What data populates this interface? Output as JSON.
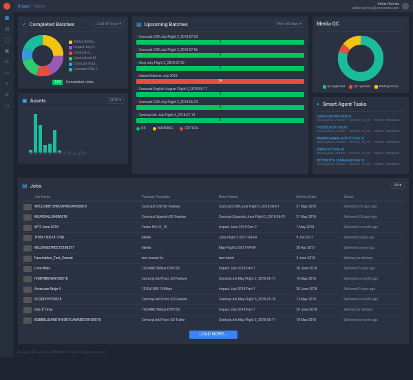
{
  "header": {
    "product": "Impact",
    "section": "Home",
    "user_name": "Adrian Gomez",
    "user_email": "adrian.gomez@ownzones.com"
  },
  "completed": {
    "title": "Completed Batches",
    "picker": "Last 60 days",
    "slices": [
      {
        "label": "Adrise Rollou...",
        "value": 25,
        "color": "#f1c40f"
      },
      {
        "label": "Impact July 2...",
        "value": 18,
        "color": "#9b59b6"
      },
      {
        "label": "CenturyLin...",
        "value": 12,
        "color": "#e74c3c"
      },
      {
        "label": "CenturyLink M...",
        "value": 16,
        "color": "#2ecc71"
      },
      {
        "label": "Comcast Engl...",
        "value": 10,
        "color": "#3498db"
      },
      {
        "label": "Comcast CIM J...",
        "value": 19,
        "color": "#1abc9c"
      }
    ],
    "inner_hole": 0.5,
    "count": "153",
    "count_label": "Completed Jobs"
  },
  "assets": {
    "title": "Assets",
    "picker": "2018",
    "bar_color": "#1abc9c",
    "months": [
      "JAN",
      "FEB",
      "MAR",
      "APR",
      "MAY",
      "JUN",
      "JUL",
      "AUG",
      "SEP",
      "OCT",
      "NOV",
      "DEC"
    ],
    "values": [
      3,
      42,
      30,
      8,
      10,
      25,
      2,
      0,
      0,
      0,
      0,
      0
    ],
    "ymax": 45
  },
  "upcoming": {
    "title": "Upcoming Batches",
    "picker": "Next 60 days",
    "items": [
      {
        "name": "Comcast CIM July Flight 5_2018-07-20",
        "value": "5",
        "status": "ok"
      },
      {
        "name": "Comcast CIM July Flight 3_2018-07-06",
        "value": "5",
        "status": "ok"
      },
      {
        "name": "Sony July Flight 2_2018-07-02",
        "value": "5",
        "status": "ok"
      },
      {
        "name": "Adrise Rollover July 2018",
        "value": "24",
        "status": "crit"
      },
      {
        "name": "Comcast English August Flight 5_2018-08-17",
        "value": "5",
        "status": "ok"
      },
      {
        "name": "Comcast CIM July Flight 2_2018-06-29",
        "value": "5",
        "status": "ok"
      },
      {
        "name": "CenturyLink July Flight 4_2018-07-13",
        "value": "5",
        "status": "ok"
      }
    ],
    "legend": [
      {
        "label": "OK",
        "color": "#00c563"
      },
      {
        "label": "WARNING",
        "color": "#f1c40f"
      },
      {
        "label": "CRITICAL",
        "color": "#e74c3c"
      }
    ]
  },
  "qc": {
    "title": "Media QC",
    "slices": [
      {
        "label": "QC approved",
        "value": 80,
        "color": "#1abc9c"
      },
      {
        "label": "QC rejected",
        "value": 6,
        "color": "#e74c3c"
      },
      {
        "label": "Waiting for QC",
        "value": 14,
        "color": "#f1c40f"
      }
    ],
    "inner_hole": 0.62
  },
  "agent": {
    "title": "Smart Agent Tasks",
    "items": [
      {
        "name": "CAGEFURY0R5160618",
        "detail": "Missing files: AdRise — Artwork_16_SD — AdRise - Metadata..."
      },
      {
        "name": "TRUEBLOOD160618",
        "detail": "Missing files: AdRise — Artwork_16_SD — AdRise - Metadata..."
      },
      {
        "name": "AMERICANNINJA3TCH160618",
        "detail": "Missing files: AdRise — Artwork_16_SD — AdRise - Metadata..."
      },
      {
        "name": "SHANTYC160618",
        "detail": "Missing files: AdRise — Artwork_16_SD — AdRise - Metadata..."
      },
      {
        "name": "BEVERLYHILLSMADAM160618",
        "detail": "Missing files: AdRise — Artwork_16_SD — AdRise - Metadata..."
      }
    ]
  },
  "jobs": {
    "title": "Jobs",
    "filter": "All",
    "columns": [
      "Job Name",
      "Package Template",
      "Batch Name",
      "Delivery Date",
      "Status"
    ],
    "rows": [
      {
        "name": "WELCOMETOWOOPWOOP050618",
        "template": "Comcast CIM SD Feature",
        "batch": "Comcast CIM June Flight 2_2018-06-01",
        "date": "31 May 2018",
        "status": "Delivered 23 days ago"
      },
      {
        "name": "MEATBALLS4080618",
        "template": "Comcast Spanish SD Feature",
        "batch": "Comcast Spanish June Flight 2_2018-06-01",
        "date": "31 May 2018",
        "status": "Delivered 20 days ago"
      },
      {
        "name": "WTF June 2018",
        "template": "Trailer HD-01_15",
        "batch": "Impact June 2018 Part 2",
        "date": "1 May 2018",
        "status": "Delivered a month ago"
      },
      {
        "name": "THIEF150618 170D",
        "template": "delete",
        "batch": "June Flight 3-2017-04-09",
        "date": "9 Jun 2017",
        "status": "Delivered a year ago"
      },
      {
        "name": "WILDINGSTREETS180517",
        "template": "delete",
        "batch": "May Flight 3-2017-04-09",
        "date": "28 Apr 2017",
        "status": "Delivered a year ago"
      },
      {
        "name": "Fascination_Test_Concat",
        "template": "test concat fix",
        "batch": "test batch",
        "date": "5 June 2018",
        "status": "Waiting for delivery"
      },
      {
        "name": "Love Bites",
        "template": "720x480 3Mbps DVNTSC",
        "batch": "Impact July 2018 Part 1",
        "date": "20 June 2018",
        "status": "Delivered 6 days ago"
      },
      {
        "name": "IVORYBROWN100518",
        "template": "CenturyLink Prism SD Feature",
        "batch": "CenturyLink May Flight 2_2018-05-11",
        "date": "10 May 2018",
        "status": "Delivered a month ago"
      },
      {
        "name": "American Ninja 4",
        "template": "1920x1080 15Mbps",
        "batch": "Impact July 2018 Part 1",
        "date": "20 June 2018",
        "status": "Delivered 5 days ago"
      },
      {
        "name": "SCORCHY100518",
        "template": "CenturyLink Prism SD Feature",
        "batch": "CenturyLink May Flight 3_2018-05-18",
        "date": "13 May 2018",
        "status": "Delivered a month ago"
      },
      {
        "name": "Out of Time",
        "template": "720x480 3Mbps DVNTSC",
        "batch": "Impact July 2018 Part 1",
        "date": "20 June 2018",
        "status": "Waiting for delivery"
      },
      {
        "name": "BOBBIEJOANDTHEOUTLAW080518100518",
        "template": "CenturyLink Prism SD Trailer",
        "batch": "CenturyLink May Flight 3_2018-05-11",
        "date": "10 May 2018",
        "status": "Delivered a month ago"
      }
    ],
    "load_more": "LOAD MORE..."
  },
  "footer": "Designed & Powered by OWNZONES © 2018 All rights reserved"
}
